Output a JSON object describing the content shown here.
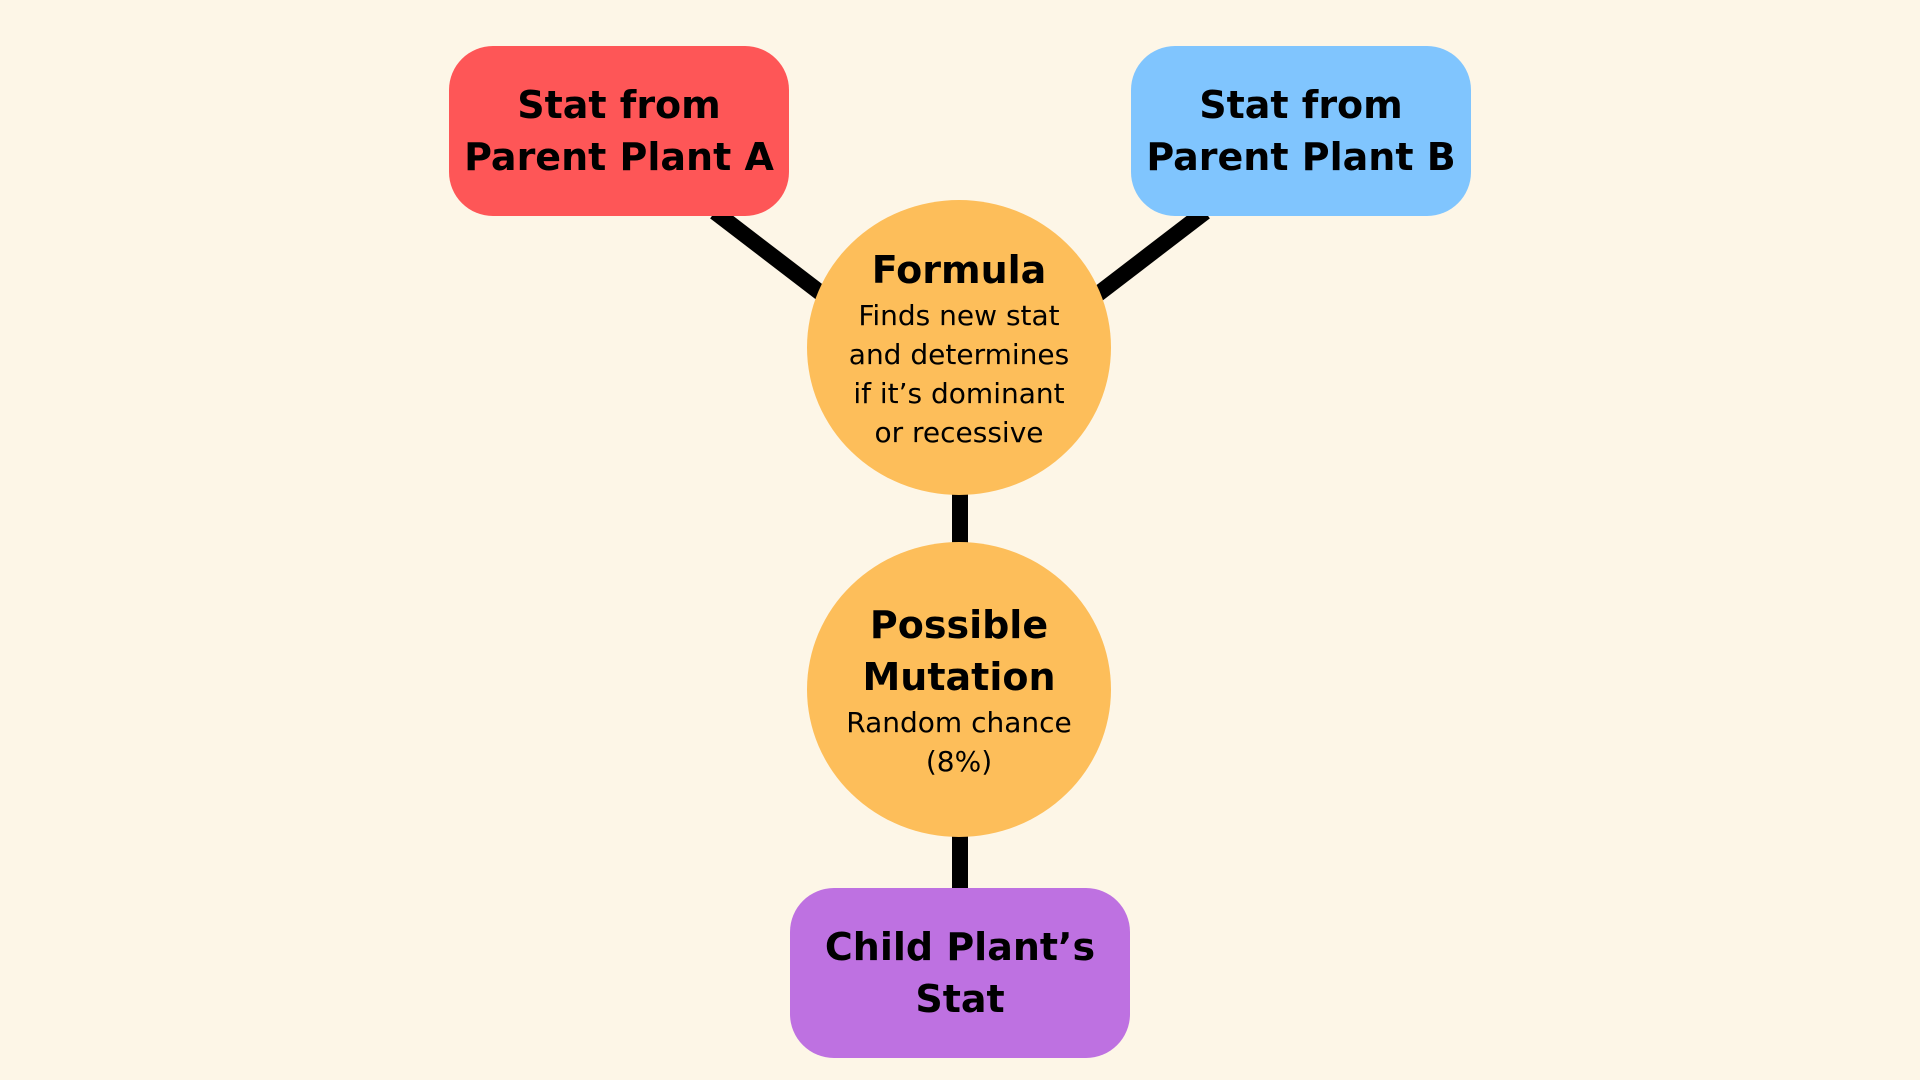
{
  "colors": {
    "background": "#fdf6e7",
    "parent_a": "#fe5657",
    "parent_b": "#80c5fe",
    "process": "#fdbe5a",
    "child": "#be71e1",
    "connector": "#000000"
  },
  "nodes": {
    "parent_a": {
      "title": "Stat from\nParent Plant A"
    },
    "parent_b": {
      "title": "Stat from\nParent Plant B"
    },
    "formula": {
      "title": "Formula",
      "description": "Finds new stat\nand determines\nif it’s dominant\nor recessive"
    },
    "mutation": {
      "title": "Possible\nMutation",
      "description": "Random chance\n(8%)"
    },
    "child": {
      "title": "Child Plant’s\nStat"
    }
  }
}
